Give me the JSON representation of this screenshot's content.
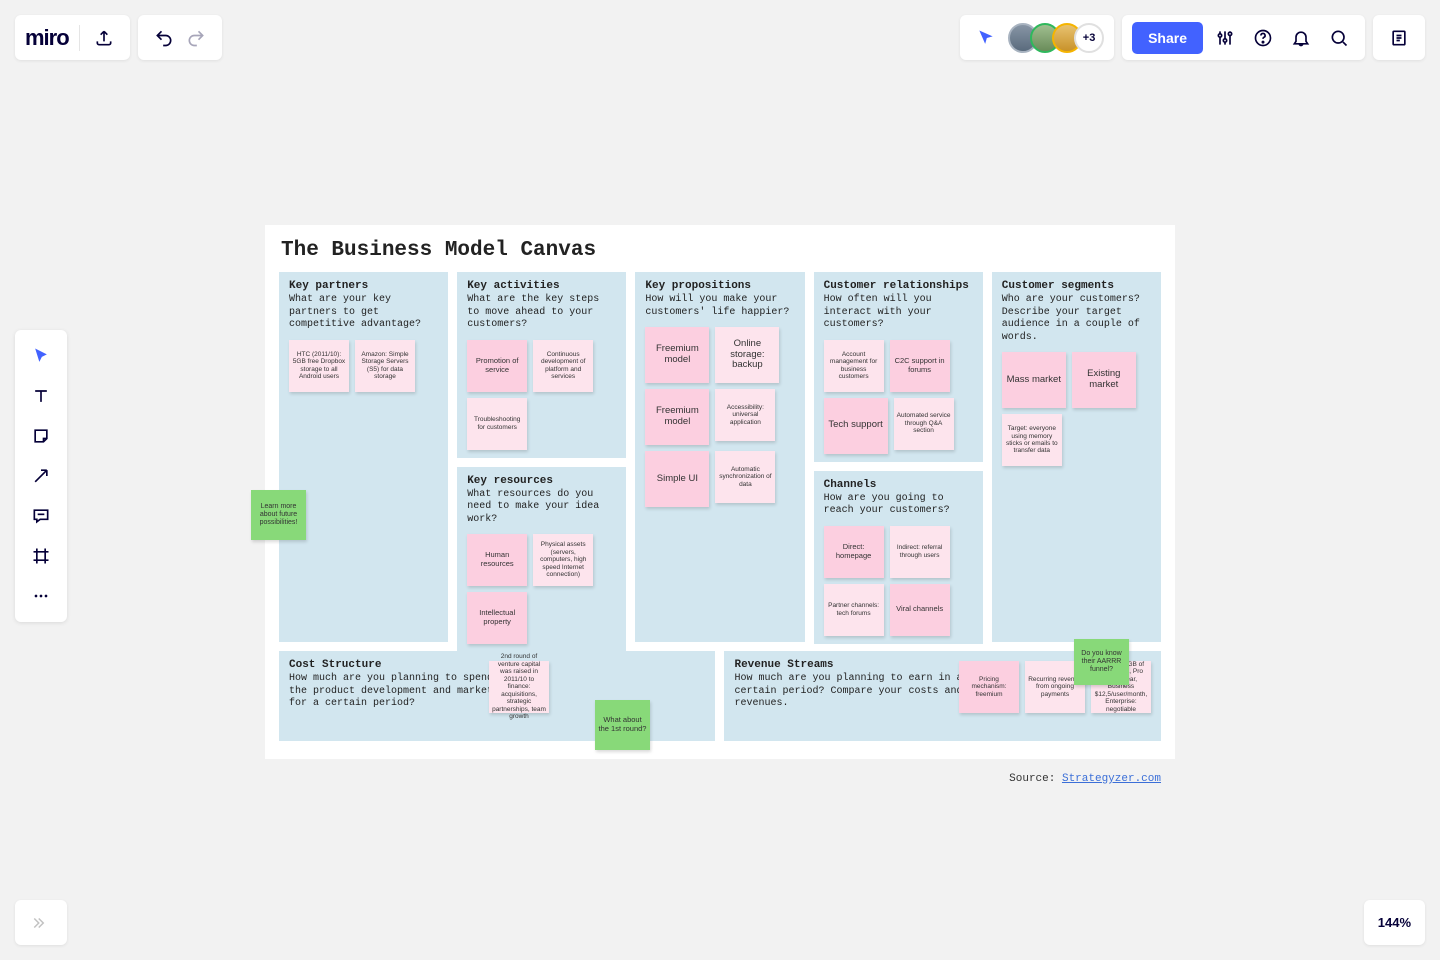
{
  "app": {
    "logo": "miro"
  },
  "topbar": {
    "share": "Share",
    "avatars": [
      {
        "bg": "#6a7b8c",
        "ring": "#a8b3c0"
      },
      {
        "bg": "#7aa26a",
        "ring": "#2eb85c"
      },
      {
        "bg": "#d8a23a",
        "ring": "#f5b400"
      }
    ],
    "more_avatars": "+3"
  },
  "zoom": "144%",
  "canvas": {
    "title": "The Business Model Canvas",
    "source_label": "Source: ",
    "source_link": "Strategyzer.com",
    "colors": {
      "block_bg": "#d2e6ef",
      "pink": "#fccfe0",
      "light_pink": "#fde4ed",
      "green": "#88d979",
      "canvas_bg": "#ffffff",
      "page_bg": "#f2f2f2",
      "link": "#3b6fd8"
    },
    "blocks": {
      "key_partners": {
        "title": "Key partners",
        "desc": "What are your key partners to get competitive advantage?",
        "notes": [
          {
            "text": "HTC (2011/10): 5GB free Dropbox storage to all Android users",
            "color": "lpink",
            "size": "tiny"
          },
          {
            "text": "Amazon: Simple Storage Servers (S5) for data storage",
            "color": "lpink",
            "size": "tiny"
          }
        ]
      },
      "key_activities": {
        "title": "Key activities",
        "desc": "What are the key steps to move ahead to your customers?",
        "notes": [
          {
            "text": "Promotion of service",
            "color": "pink"
          },
          {
            "text": "Continuous development of platform and services",
            "color": "lpink",
            "size": "tiny"
          },
          {
            "text": "Troubleshooting for customers",
            "color": "lpink",
            "size": "tiny"
          }
        ]
      },
      "key_resources": {
        "title": "Key resources",
        "desc": "What resources do you need to make your idea work?",
        "notes": [
          {
            "text": "Human resources",
            "color": "pink"
          },
          {
            "text": "Physical assets (servers, computers, high speed Internet connection)",
            "color": "lpink",
            "size": "tiny"
          },
          {
            "text": "Intellectual property",
            "color": "pink"
          }
        ]
      },
      "value_propositions": {
        "title": "Key propositions",
        "desc": "How will you make your customers' life happier?",
        "notes": [
          {
            "text": "Freemium model",
            "color": "pink",
            "size": "lg"
          },
          {
            "text": "Online storage: backup",
            "color": "lpink",
            "size": "lg"
          },
          {
            "text": "Freemium model",
            "color": "pink",
            "size": "lg"
          },
          {
            "text": "Accessibility: universal application",
            "color": "lpink",
            "size": "tiny"
          },
          {
            "text": "Simple UI",
            "color": "pink",
            "size": "lg"
          },
          {
            "text": "Automatic synchronization of data",
            "color": "lpink",
            "size": "tiny"
          }
        ]
      },
      "customer_relationships": {
        "title": "Customer relationships",
        "desc": "How often will you interact with your customers?",
        "notes": [
          {
            "text": "Account management for business customers",
            "color": "lpink",
            "size": "tiny"
          },
          {
            "text": "C2C support in forums",
            "color": "pink"
          },
          {
            "text": "Tech support",
            "color": "pink",
            "size": "lg"
          },
          {
            "text": "Automated service through Q&A section",
            "color": "lpink",
            "size": "tiny"
          }
        ]
      },
      "channels": {
        "title": "Channels",
        "desc": "How are you going to reach your customers?",
        "notes": [
          {
            "text": "Direct: homepage",
            "color": "pink"
          },
          {
            "text": "Indirect: referral through users",
            "color": "lpink",
            "size": "tiny"
          },
          {
            "text": "Partner channels: tech forums",
            "color": "lpink",
            "size": "tiny"
          },
          {
            "text": "Viral channels",
            "color": "pink"
          }
        ]
      },
      "customer_segments": {
        "title": "Customer segments",
        "desc": "Who are your customers? Describe your target audience in a couple of words.",
        "notes": [
          {
            "text": "Mass market",
            "color": "pink",
            "size": "lg"
          },
          {
            "text": "Existing market",
            "color": "pink",
            "size": "lg"
          },
          {
            "text": "Target: everyone using memory sticks or emails to transfer data",
            "color": "lpink",
            "size": "tiny"
          }
        ]
      },
      "cost_structure": {
        "title": "Cost Structure",
        "desc": "How much are you planning to spend on the product development and marketing for a certain period?",
        "notes": [
          {
            "text": "2nd round of venture capital was raised in 2011/10 to finance: acquisitions, strategic partnerships, team growth",
            "color": "lpink",
            "size": "tiny"
          }
        ]
      },
      "revenue_streams": {
        "title": "Revenue Streams",
        "desc": "How much are you planning to earn in a certain period? Compare your costs and revenues.",
        "notes": [
          {
            "text": "Pricing mechanism: freemium",
            "color": "pink",
            "size": "tiny"
          },
          {
            "text": "Recurring revenue from ongoing payments",
            "color": "lpink",
            "size": "tiny"
          },
          {
            "text": "Options: 2GB of free space, Pro 99,99/year, Business $12,5/user/month, Enterprise: negotiable",
            "color": "lpink",
            "size": "tiny"
          }
        ]
      }
    },
    "floating_notes": {
      "learn_more": "Learn more about future possibilities!",
      "what_about": "What about the 1st round?",
      "aarrr": "Do you know their AARRR funnel?"
    }
  }
}
